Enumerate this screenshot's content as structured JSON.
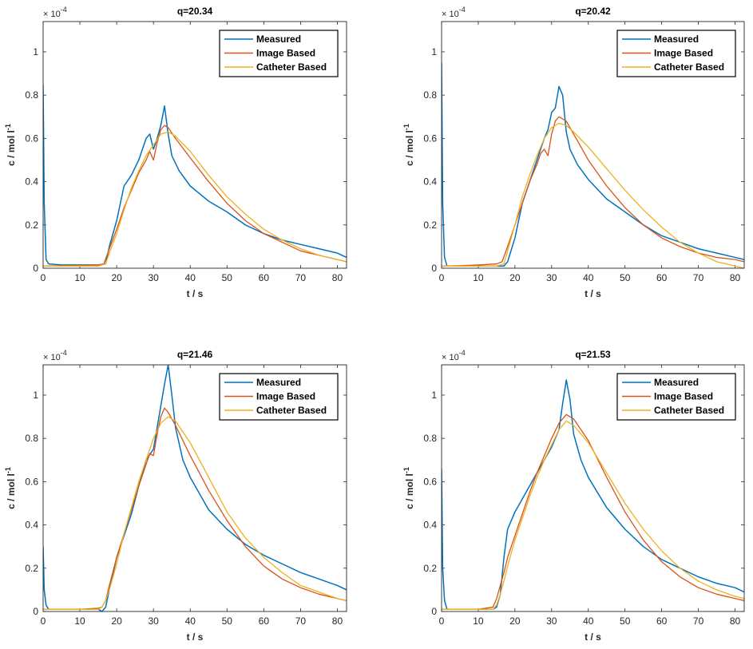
{
  "colors": {
    "measured": "#0072BD",
    "image_based": "#D95319",
    "catheter_based": "#EDB120",
    "axis": "#262626"
  },
  "chart_data": [
    {
      "type": "line",
      "title": "q=20.34",
      "xlabel": "t / s",
      "ylabel": "c / mol l",
      "ylabel_superscript": "-1",
      "exponent_base": "× 10",
      "exponent_power": "-4",
      "xlim": [
        0,
        82.5
      ],
      "ylim": [
        0,
        1.14
      ],
      "xticks": [
        0,
        10,
        20,
        30,
        40,
        50,
        60,
        70,
        80
      ],
      "yticks": [
        0,
        0.2,
        0.4,
        0.6,
        0.8,
        1
      ],
      "ytick_labels": [
        "0",
        "0.2",
        "0.4",
        "0.6",
        "0.8",
        "1"
      ],
      "legend": [
        "Measured",
        "Image Based",
        "Catheter Based"
      ],
      "legend_location": "top-right",
      "series": [
        {
          "name": "Measured",
          "x": [
            0,
            0.3,
            0.8,
            1.5,
            5,
            10,
            15,
            17,
            18,
            20,
            22,
            24,
            26,
            28,
            29,
            30,
            31,
            32,
            33,
            34,
            35,
            37,
            40,
            45,
            50,
            55,
            60,
            65,
            70,
            75,
            80,
            82.5
          ],
          "y": [
            0.85,
            0.3,
            0.04,
            0.02,
            0.015,
            0.015,
            0.015,
            0.02,
            0.1,
            0.22,
            0.38,
            0.43,
            0.5,
            0.6,
            0.62,
            0.55,
            0.6,
            0.66,
            0.75,
            0.62,
            0.52,
            0.45,
            0.38,
            0.31,
            0.26,
            0.2,
            0.16,
            0.13,
            0.11,
            0.09,
            0.07,
            0.05
          ]
        },
        {
          "name": "Image Based",
          "x": [
            0,
            5,
            10,
            15,
            16.5,
            18,
            20,
            22,
            24,
            26,
            28,
            29,
            30,
            31,
            32,
            33,
            34,
            36,
            40,
            45,
            50,
            55,
            60,
            65,
            70,
            75,
            80,
            82.5
          ],
          "y": [
            0.01,
            0.012,
            0.013,
            0.015,
            0.02,
            0.09,
            0.18,
            0.28,
            0.36,
            0.44,
            0.5,
            0.54,
            0.5,
            0.58,
            0.64,
            0.66,
            0.65,
            0.6,
            0.51,
            0.4,
            0.3,
            0.22,
            0.16,
            0.12,
            0.08,
            0.06,
            0.04,
            0.03
          ]
        },
        {
          "name": "Catheter Based",
          "x": [
            0,
            5,
            10,
            15,
            17,
            18,
            20,
            22,
            24,
            26,
            28,
            30,
            32,
            34,
            36,
            40,
            45,
            50,
            55,
            60,
            65,
            70,
            75,
            80,
            82.5
          ],
          "y": [
            0.01,
            0.01,
            0.01,
            0.01,
            0.02,
            0.07,
            0.16,
            0.27,
            0.37,
            0.45,
            0.52,
            0.57,
            0.62,
            0.63,
            0.61,
            0.54,
            0.43,
            0.33,
            0.25,
            0.18,
            0.13,
            0.09,
            0.06,
            0.04,
            0.03
          ]
        }
      ]
    },
    {
      "type": "line",
      "title": "q=20.42",
      "xlabel": "t / s",
      "ylabel": "c / mol l",
      "ylabel_superscript": "-1",
      "exponent_base": "× 10",
      "exponent_power": "-4",
      "xlim": [
        0,
        82.5
      ],
      "ylim": [
        0,
        1.14
      ],
      "xticks": [
        0,
        10,
        20,
        30,
        40,
        50,
        60,
        70,
        80
      ],
      "yticks": [
        0,
        0.2,
        0.4,
        0.6,
        0.8,
        1
      ],
      "ytick_labels": [
        "0",
        "0.2",
        "0.4",
        "0.6",
        "0.8",
        "1"
      ],
      "legend": [
        "Measured",
        "Image Based",
        "Catheter Based"
      ],
      "legend_location": "top-right",
      "series": [
        {
          "name": "Measured",
          "x": [
            0,
            0.3,
            0.8,
            1.5,
            5,
            10,
            15,
            17,
            18,
            20,
            22,
            24,
            26,
            28,
            29,
            30,
            31,
            32,
            33,
            34,
            35,
            37,
            40,
            45,
            50,
            55,
            60,
            65,
            70,
            75,
            80,
            82.5
          ],
          "y": [
            0.95,
            0.3,
            0.05,
            0.01,
            0.01,
            0.01,
            0.01,
            0.01,
            0.03,
            0.14,
            0.3,
            0.4,
            0.5,
            0.6,
            0.64,
            0.72,
            0.74,
            0.84,
            0.8,
            0.63,
            0.55,
            0.48,
            0.41,
            0.32,
            0.26,
            0.2,
            0.15,
            0.12,
            0.09,
            0.07,
            0.05,
            0.04
          ]
        },
        {
          "name": "Image Based",
          "x": [
            0,
            5,
            10,
            15,
            16.5,
            18,
            20,
            22,
            24,
            26,
            27,
            28,
            29,
            30,
            31,
            32,
            34,
            36,
            40,
            45,
            50,
            55,
            60,
            65,
            70,
            75,
            80,
            82.5
          ],
          "y": [
            0.01,
            0.012,
            0.015,
            0.02,
            0.03,
            0.1,
            0.2,
            0.3,
            0.4,
            0.48,
            0.53,
            0.55,
            0.52,
            0.62,
            0.68,
            0.7,
            0.68,
            0.62,
            0.5,
            0.38,
            0.28,
            0.2,
            0.14,
            0.1,
            0.07,
            0.05,
            0.04,
            0.03
          ]
        },
        {
          "name": "Catheter Based",
          "x": [
            0,
            5,
            10,
            15,
            17,
            18,
            20,
            22,
            24,
            26,
            28,
            30,
            32,
            34,
            36,
            40,
            45,
            50,
            55,
            60,
            65,
            70,
            75,
            80,
            82.5
          ],
          "y": [
            0.01,
            0.01,
            0.01,
            0.01,
            0.02,
            0.08,
            0.2,
            0.33,
            0.43,
            0.52,
            0.6,
            0.65,
            0.67,
            0.66,
            0.63,
            0.56,
            0.46,
            0.36,
            0.27,
            0.19,
            0.12,
            0.07,
            0.03,
            0.01,
            0.0
          ]
        }
      ]
    },
    {
      "type": "line",
      "title": "q=21.46",
      "xlabel": "t / s",
      "ylabel": "c / mol l",
      "ylabel_superscript": "-1",
      "exponent_base": "× 10",
      "exponent_power": "-4",
      "xlim": [
        0,
        82.5
      ],
      "ylim": [
        0,
        1.14
      ],
      "xticks": [
        0,
        10,
        20,
        30,
        40,
        50,
        60,
        70,
        80
      ],
      "yticks": [
        0,
        0.2,
        0.4,
        0.6,
        0.8,
        1
      ],
      "ytick_labels": [
        "0",
        "0.2",
        "0.4",
        "0.6",
        "0.8",
        "1"
      ],
      "legend": [
        "Measured",
        "Image Based",
        "Catheter Based"
      ],
      "legend_location": "top-right",
      "series": [
        {
          "name": "Measured",
          "x": [
            0,
            0.3,
            0.8,
            1.5,
            5,
            10,
            15,
            16,
            17,
            18,
            20,
            22,
            24,
            26,
            28,
            30,
            31,
            32,
            33,
            34,
            35,
            36,
            38,
            40,
            45,
            50,
            55,
            60,
            65,
            70,
            75,
            80,
            82.5
          ],
          "y": [
            0.3,
            0.1,
            0.03,
            0.01,
            0.01,
            0.01,
            0.01,
            0.0,
            0.02,
            0.1,
            0.25,
            0.35,
            0.45,
            0.58,
            0.7,
            0.75,
            0.85,
            0.95,
            1.05,
            1.14,
            1.0,
            0.85,
            0.7,
            0.62,
            0.47,
            0.38,
            0.31,
            0.26,
            0.22,
            0.18,
            0.15,
            0.12,
            0.1
          ]
        },
        {
          "name": "Image Based",
          "x": [
            0,
            5,
            10,
            15,
            16,
            17,
            18,
            20,
            22,
            24,
            26,
            28,
            29,
            30,
            31,
            32,
            33,
            34,
            36,
            40,
            45,
            50,
            55,
            60,
            65,
            70,
            75,
            80,
            82.5
          ],
          "y": [
            0.01,
            0.01,
            0.01,
            0.015,
            0.02,
            0.05,
            0.12,
            0.25,
            0.36,
            0.47,
            0.58,
            0.68,
            0.73,
            0.72,
            0.82,
            0.9,
            0.94,
            0.92,
            0.86,
            0.72,
            0.56,
            0.42,
            0.3,
            0.21,
            0.15,
            0.11,
            0.08,
            0.06,
            0.05
          ]
        },
        {
          "name": "Catheter Based",
          "x": [
            0,
            5,
            10,
            15,
            16,
            17,
            18,
            20,
            22,
            24,
            26,
            28,
            30,
            32,
            34,
            36,
            40,
            45,
            50,
            55,
            60,
            65,
            70,
            75,
            80,
            82.5
          ],
          "y": [
            0.01,
            0.01,
            0.01,
            0.01,
            0.02,
            0.05,
            0.1,
            0.22,
            0.36,
            0.48,
            0.6,
            0.7,
            0.8,
            0.87,
            0.9,
            0.88,
            0.78,
            0.62,
            0.46,
            0.34,
            0.25,
            0.18,
            0.12,
            0.09,
            0.06,
            0.05
          ]
        }
      ]
    },
    {
      "type": "line",
      "title": "q=21.53",
      "xlabel": "t / s",
      "ylabel": "c / mol l",
      "ylabel_superscript": "-1",
      "exponent_base": "× 10",
      "exponent_power": "-4",
      "xlim": [
        0,
        82.5
      ],
      "ylim": [
        0,
        1.14
      ],
      "xticks": [
        0,
        10,
        20,
        30,
        40,
        50,
        60,
        70,
        80
      ],
      "yticks": [
        0,
        0.2,
        0.4,
        0.6,
        0.8,
        1
      ],
      "ytick_labels": [
        "0",
        "0.2",
        "0.4",
        "0.6",
        "0.8",
        "1"
      ],
      "legend": [
        "Measured",
        "Image Based",
        "Catheter Based"
      ],
      "legend_location": "top-right",
      "series": [
        {
          "name": "Measured",
          "x": [
            0,
            0.3,
            0.8,
            1.5,
            5,
            10,
            14,
            15,
            16,
            17,
            18,
            20,
            22,
            24,
            26,
            28,
            30,
            32,
            33,
            34,
            35,
            36,
            38,
            40,
            45,
            50,
            55,
            60,
            65,
            70,
            75,
            80,
            82.5
          ],
          "y": [
            0.66,
            0.2,
            0.05,
            0.01,
            0.01,
            0.01,
            0.01,
            0.02,
            0.08,
            0.25,
            0.38,
            0.46,
            0.52,
            0.58,
            0.64,
            0.7,
            0.76,
            0.84,
            0.96,
            1.07,
            0.98,
            0.82,
            0.7,
            0.62,
            0.48,
            0.38,
            0.3,
            0.24,
            0.2,
            0.16,
            0.13,
            0.11,
            0.09
          ]
        },
        {
          "name": "Image Based",
          "x": [
            0,
            5,
            10,
            14,
            15,
            16,
            17,
            18,
            20,
            22,
            24,
            26,
            28,
            30,
            32,
            34,
            36,
            40,
            45,
            50,
            55,
            60,
            65,
            70,
            75,
            80,
            82.5
          ],
          "y": [
            0.01,
            0.01,
            0.01,
            0.02,
            0.06,
            0.12,
            0.18,
            0.25,
            0.35,
            0.45,
            0.55,
            0.64,
            0.72,
            0.8,
            0.87,
            0.91,
            0.89,
            0.79,
            0.62,
            0.46,
            0.33,
            0.23,
            0.16,
            0.11,
            0.08,
            0.06,
            0.05
          ]
        },
        {
          "name": "Catheter Based",
          "x": [
            0,
            5,
            10,
            14,
            15,
            16,
            17,
            18,
            20,
            22,
            24,
            26,
            28,
            30,
            32,
            34,
            36,
            40,
            45,
            50,
            55,
            60,
            65,
            70,
            75,
            80,
            82.5
          ],
          "y": [
            0.01,
            0.01,
            0.01,
            0.01,
            0.03,
            0.08,
            0.14,
            0.21,
            0.33,
            0.43,
            0.53,
            0.62,
            0.7,
            0.77,
            0.84,
            0.88,
            0.86,
            0.78,
            0.64,
            0.5,
            0.38,
            0.28,
            0.2,
            0.14,
            0.1,
            0.07,
            0.06
          ]
        }
      ]
    }
  ]
}
